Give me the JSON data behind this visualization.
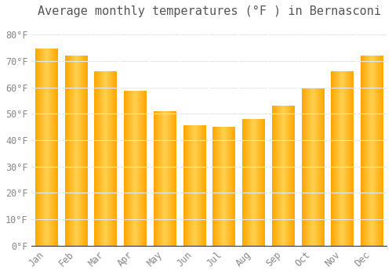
{
  "title": "Average monthly temperatures (°F ) in Bernasconi",
  "months": [
    "Jan",
    "Feb",
    "Mar",
    "Apr",
    "May",
    "Jun",
    "Jul",
    "Aug",
    "Sep",
    "Oct",
    "Nov",
    "Dec"
  ],
  "values": [
    74.5,
    72,
    66,
    58.5,
    51,
    45.5,
    45,
    48,
    53,
    59.5,
    66,
    72
  ],
  "bar_color_left": "#FFA500",
  "bar_color_center": "#FFD050",
  "bar_color_right": "#FFA500",
  "background_color": "#FFFFFF",
  "grid_color": "#E8E8E8",
  "text_color": "#888888",
  "title_color": "#555555",
  "ylim": [
    0,
    85
  ],
  "yticks": [
    0,
    10,
    20,
    30,
    40,
    50,
    60,
    70,
    80
  ],
  "ytick_labels": [
    "0°F",
    "10°F",
    "20°F",
    "30°F",
    "40°F",
    "50°F",
    "60°F",
    "70°F",
    "80°F"
  ],
  "title_fontsize": 11,
  "tick_fontsize": 8.5,
  "font_family": "monospace",
  "bar_width": 0.75
}
